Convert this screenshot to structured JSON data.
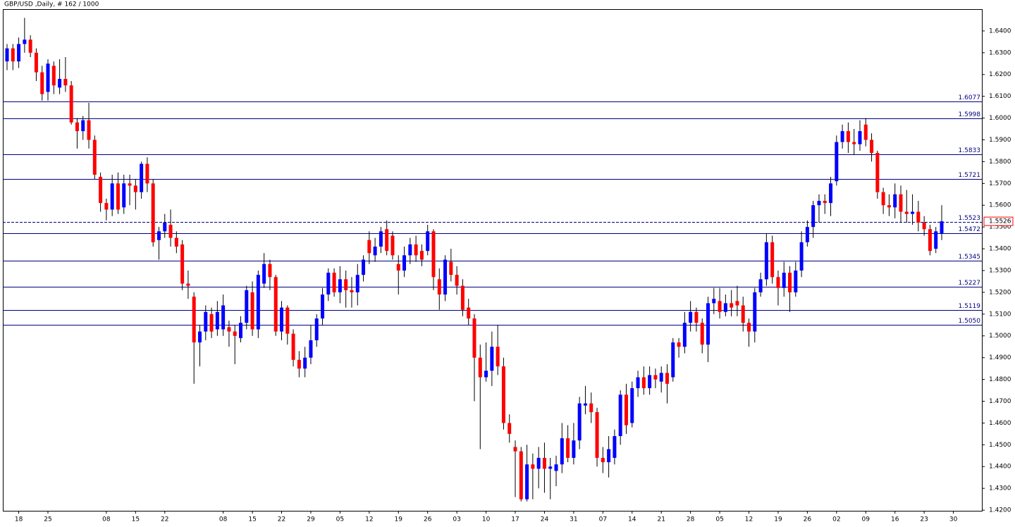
{
  "chart_data": {
    "type": "candlestick",
    "title": "GBP/USD ,Daily, # 162 / 1000",
    "categories": [
      null,
      null,
      "18",
      null,
      null,
      null,
      null,
      "25",
      null,
      null,
      null,
      null,
      null,
      null,
      null,
      null,
      null,
      "08",
      null,
      null,
      null,
      null,
      "15",
      null,
      null,
      null,
      null,
      "22",
      null,
      null,
      null,
      null,
      null,
      null,
      null,
      null,
      null,
      "08",
      null,
      null,
      null,
      null,
      "15",
      null,
      null,
      null,
      null,
      "22",
      null,
      null,
      null,
      null,
      "29",
      null,
      null,
      null,
      null,
      "05",
      null,
      null,
      null,
      null,
      "12",
      null,
      null,
      null,
      null,
      "19",
      null,
      null,
      null,
      null,
      "26",
      null,
      null,
      null,
      null,
      "03",
      null,
      null,
      null,
      null,
      "10",
      null,
      null,
      null,
      null,
      "17",
      null,
      null,
      null,
      null,
      "24",
      null,
      null,
      null,
      null,
      "31",
      null,
      null,
      null,
      null,
      "07",
      null,
      null,
      null,
      null,
      "14",
      null,
      null,
      null,
      null,
      "21",
      null,
      null,
      null,
      null,
      "28",
      null,
      null,
      null,
      null,
      "05",
      null,
      null,
      null,
      null,
      "12",
      null,
      null,
      null,
      null,
      "19",
      null,
      null,
      null,
      null,
      "26",
      null,
      null,
      null,
      null,
      "02",
      null,
      null,
      null,
      null,
      "09",
      null,
      null,
      null,
      null,
      "16",
      null,
      null,
      null,
      null,
      "23",
      null,
      null,
      null,
      null,
      "30"
    ],
    "open": [
      1.626,
      1.632,
      1.626,
      1.634,
      1.636,
      1.63,
      1.621,
      1.612,
      1.624,
      1.614,
      1.618,
      1.615,
      1.598,
      1.594,
      1.599,
      1.59,
      1.573,
      1.561,
      1.558,
      1.57,
      1.559,
      1.57,
      1.569,
      1.566,
      1.579,
      1.57,
      1.544,
      1.548,
      1.551,
      1.545,
      1.542,
      1.524,
      1.518,
      1.497,
      1.502,
      1.51,
      1.503,
      1.503,
      1.504,
      1.502,
      1.499,
      1.506,
      1.52,
      1.503,
      1.524,
      1.533,
      1.527,
      1.502,
      1.513,
      1.501,
      1.489,
      1.485,
      1.49,
      1.498,
      1.508,
      1.519,
      1.529,
      1.52,
      1.526,
      1.521,
      1.52,
      1.528,
      1.544,
      1.537,
      1.541,
      1.549,
      1.546,
      1.533,
      1.53,
      1.537,
      1.542,
      1.539,
      1.539,
      1.548,
      1.526,
      1.519,
      1.534,
      1.528,
      1.523,
      1.513,
      1.508,
      1.49,
      1.481,
      1.484,
      1.495,
      1.486,
      1.46,
      1.449,
      1.447,
      1.425,
      1.441,
      1.439,
      1.444,
      1.439,
      1.438,
      1.441,
      1.453,
      1.444,
      1.452,
      1.468,
      1.469,
      1.465,
      1.444,
      1.442,
      1.444,
      1.454,
      1.473,
      1.46,
      1.476,
      1.481,
      1.476,
      1.482,
      1.479,
      1.483,
      1.481,
      1.497,
      1.495,
      1.506,
      1.511,
      1.506,
      1.496,
      1.515,
      1.516,
      1.511,
      1.515,
      1.516,
      1.514,
      1.506,
      1.502,
      1.52,
      1.526,
      1.543,
      1.527,
      1.522,
      1.529,
      1.52,
      1.53,
      1.543,
      1.55,
      1.56,
      1.562,
      1.561,
      1.571,
      1.589,
      1.594,
      1.589,
      1.588,
      1.597,
      1.59,
      1.584,
      1.566,
      1.56,
      1.559,
      1.565,
      1.557,
      1.556,
      1.557,
      1.552,
      1.549,
      1.54,
      1.547,
      null,
      null
    ],
    "high": [
      1.634,
      1.634,
      1.637,
      1.646,
      1.638,
      1.632,
      1.624,
      1.627,
      1.626,
      1.627,
      1.628,
      1.617,
      1.6,
      1.601,
      1.607,
      1.592,
      1.575,
      1.563,
      1.574,
      1.575,
      1.574,
      1.574,
      1.572,
      1.58,
      1.582,
      1.572,
      1.55,
      1.556,
      1.558,
      1.548,
      1.544,
      1.53,
      1.52,
      1.505,
      1.514,
      1.513,
      1.516,
      1.519,
      1.507,
      1.505,
      1.509,
      1.523,
      1.525,
      1.53,
      1.538,
      1.535,
      1.528,
      1.516,
      1.514,
      1.503,
      1.493,
      1.495,
      1.505,
      1.51,
      1.522,
      1.531,
      1.531,
      1.532,
      1.53,
      1.527,
      1.533,
      1.537,
      1.548,
      1.545,
      1.55,
      1.553,
      1.548,
      1.537,
      1.541,
      1.545,
      1.546,
      1.542,
      1.551,
      1.549,
      1.531,
      1.537,
      1.54,
      1.532,
      1.526,
      1.517,
      1.51,
      1.496,
      1.497,
      1.502,
      1.505,
      1.49,
      1.464,
      1.452,
      1.449,
      1.45,
      1.446,
      1.449,
      1.451,
      1.444,
      1.445,
      1.46,
      1.459,
      1.46,
      1.472,
      1.477,
      1.474,
      1.467,
      1.449,
      1.454,
      1.457,
      1.475,
      1.478,
      1.479,
      1.484,
      1.486,
      1.486,
      1.485,
      1.486,
      1.487,
      1.499,
      1.499,
      1.511,
      1.516,
      1.513,
      1.508,
      1.518,
      1.522,
      1.522,
      1.519,
      1.521,
      1.523,
      1.518,
      1.508,
      1.522,
      1.529,
      1.547,
      1.546,
      1.53,
      1.534,
      1.532,
      1.534,
      1.548,
      1.553,
      1.562,
      1.565,
      1.565,
      1.573,
      1.592,
      1.597,
      1.598,
      1.595,
      1.599,
      1.6,
      1.593,
      1.585,
      1.568,
      1.565,
      1.57,
      1.569,
      1.567,
      1.565,
      1.562,
      1.555,
      1.551,
      1.55,
      1.56,
      null,
      null
    ],
    "low": [
      1.622,
      1.622,
      1.623,
      1.63,
      1.628,
      1.617,
      1.608,
      1.608,
      1.611,
      1.611,
      1.612,
      1.597,
      1.586,
      1.59,
      1.586,
      1.572,
      1.557,
      1.553,
      1.555,
      1.556,
      1.556,
      1.56,
      1.558,
      1.563,
      1.566,
      1.541,
      1.535,
      1.545,
      1.541,
      1.538,
      1.521,
      1.517,
      1.478,
      1.486,
      1.498,
      1.499,
      1.5,
      1.5,
      1.495,
      1.487,
      1.497,
      1.503,
      1.5,
      1.499,
      1.522,
      1.521,
      1.5,
      1.498,
      1.496,
      1.486,
      1.481,
      1.481,
      1.487,
      1.495,
      1.505,
      1.516,
      1.518,
      1.515,
      1.513,
      1.513,
      1.514,
      1.525,
      1.533,
      1.534,
      1.538,
      1.537,
      1.535,
      1.519,
      1.527,
      1.533,
      1.534,
      1.532,
      1.537,
      1.521,
      1.512,
      1.516,
      1.525,
      1.519,
      1.509,
      1.505,
      1.47,
      1.448,
      1.479,
      1.477,
      1.482,
      1.457,
      1.451,
      1.426,
      1.424,
      1.424,
      1.425,
      1.43,
      1.428,
      1.425,
      1.431,
      1.437,
      1.442,
      1.441,
      1.448,
      1.464,
      1.46,
      1.44,
      1.437,
      1.435,
      1.441,
      1.45,
      1.455,
      1.458,
      1.472,
      1.473,
      1.473,
      1.476,
      1.474,
      1.469,
      1.479,
      1.49,
      1.492,
      1.502,
      1.502,
      1.492,
      1.488,
      1.51,
      1.508,
      1.509,
      1.509,
      1.509,
      1.502,
      1.495,
      1.497,
      1.518,
      1.523,
      1.524,
      1.514,
      1.518,
      1.511,
      1.518,
      1.527,
      1.541,
      1.545,
      1.552,
      1.556,
      1.555,
      1.569,
      1.586,
      1.584,
      1.583,
      1.585,
      1.587,
      1.58,
      1.563,
      1.556,
      1.555,
      1.554,
      1.552,
      1.552,
      1.551,
      1.548,
      1.546,
      1.537,
      1.538,
      1.544,
      null,
      null
    ],
    "close": [
      1.632,
      1.626,
      1.634,
      1.636,
      1.63,
      1.621,
      1.611,
      1.625,
      1.615,
      1.618,
      1.615,
      1.598,
      1.594,
      1.599,
      1.59,
      1.574,
      1.561,
      1.558,
      1.57,
      1.558,
      1.57,
      1.569,
      1.566,
      1.579,
      1.57,
      1.543,
      1.548,
      1.552,
      1.545,
      1.541,
      1.524,
      1.523,
      1.497,
      1.502,
      1.511,
      1.502,
      1.511,
      1.514,
      1.502,
      1.5,
      1.506,
      1.521,
      1.503,
      1.528,
      1.533,
      1.527,
      1.502,
      1.513,
      1.501,
      1.489,
      1.485,
      1.49,
      1.498,
      1.508,
      1.519,
      1.529,
      1.52,
      1.526,
      1.521,
      1.52,
      1.528,
      1.535,
      1.538,
      1.541,
      1.548,
      1.539,
      1.537,
      1.53,
      1.537,
      1.542,
      1.537,
      1.535,
      1.548,
      1.527,
      1.519,
      1.535,
      1.528,
      1.523,
      1.512,
      1.508,
      1.49,
      1.481,
      1.484,
      1.495,
      1.486,
      1.46,
      1.455,
      1.447,
      1.425,
      1.441,
      1.439,
      1.444,
      1.439,
      1.44,
      1.441,
      1.453,
      1.444,
      1.452,
      1.469,
      1.469,
      1.465,
      1.444,
      1.442,
      1.448,
      1.454,
      1.473,
      1.459,
      1.476,
      1.481,
      1.476,
      1.482,
      1.48,
      1.483,
      1.478,
      1.497,
      1.495,
      1.506,
      1.511,
      1.506,
      1.496,
      1.515,
      1.517,
      1.511,
      1.515,
      1.513,
      1.514,
      1.506,
      1.502,
      1.52,
      1.526,
      1.543,
      1.527,
      1.522,
      1.529,
      1.52,
      1.53,
      1.543,
      1.55,
      1.56,
      1.562,
      1.561,
      1.57,
      1.589,
      1.594,
      1.589,
      1.588,
      1.594,
      1.59,
      1.584,
      1.566,
      1.56,
      1.559,
      1.565,
      1.557,
      1.556,
      1.557,
      1.552,
      1.549,
      1.539,
      1.548,
      1.5526,
      null,
      null
    ],
    "up_color": "#0000ff",
    "down_color": "#ff0000",
    "wick_color": "#000000",
    "level_color": "#000080",
    "ylim": [
      1.4197,
      1.65
    ],
    "yticks": [
      {
        "value": 1.64,
        "label": "1.6400"
      },
      {
        "value": 1.63,
        "label": "1.6300"
      },
      {
        "value": 1.62,
        "label": "1.6200"
      },
      {
        "value": 1.61,
        "label": "1.6100"
      },
      {
        "value": 1.6,
        "label": "1.6000"
      },
      {
        "value": 1.59,
        "label": "1.5900"
      },
      {
        "value": 1.58,
        "label": "1.5800"
      },
      {
        "value": 1.57,
        "label": "1.5700"
      },
      {
        "value": 1.56,
        "label": "1.5600"
      },
      {
        "value": 1.55,
        "label": "1.5500"
      },
      {
        "value": 1.54,
        "label": "1.5400"
      },
      {
        "value": 1.53,
        "label": "1.5300"
      },
      {
        "value": 1.52,
        "label": "1.5200"
      },
      {
        "value": 1.51,
        "label": "1.5100"
      },
      {
        "value": 1.5,
        "label": "1.5000"
      },
      {
        "value": 1.49,
        "label": "1.4900"
      },
      {
        "value": 1.48,
        "label": "1.4800"
      },
      {
        "value": 1.47,
        "label": "1.4700"
      },
      {
        "value": 1.46,
        "label": "1.4600"
      },
      {
        "value": 1.45,
        "label": "1.4500"
      },
      {
        "value": 1.44,
        "label": "1.4400"
      },
      {
        "value": 1.43,
        "label": "1.4300"
      },
      {
        "value": 1.42,
        "label": "1.4200"
      }
    ],
    "levels": [
      {
        "value": 1.6077,
        "label": "1.6077",
        "style": "solid"
      },
      {
        "value": 1.5998,
        "label": "1.5998",
        "style": "solid"
      },
      {
        "value": 1.5833,
        "label": "1.5833",
        "style": "solid"
      },
      {
        "value": 1.5721,
        "label": "1.5721",
        "style": "solid"
      },
      {
        "value": 1.5523,
        "label": "1.5523",
        "style": "dashed"
      },
      {
        "value": 1.5472,
        "label": "1.5472",
        "style": "solid"
      },
      {
        "value": 1.5345,
        "label": "1.5345",
        "style": "solid"
      },
      {
        "value": 1.5227,
        "label": "1.5227",
        "style": "solid"
      },
      {
        "value": 1.5119,
        "label": "1.5119",
        "style": "solid"
      },
      {
        "value": 1.505,
        "label": "1.5050",
        "style": "solid"
      }
    ],
    "current_price": {
      "value": 1.5526,
      "label": "1.5526"
    }
  }
}
